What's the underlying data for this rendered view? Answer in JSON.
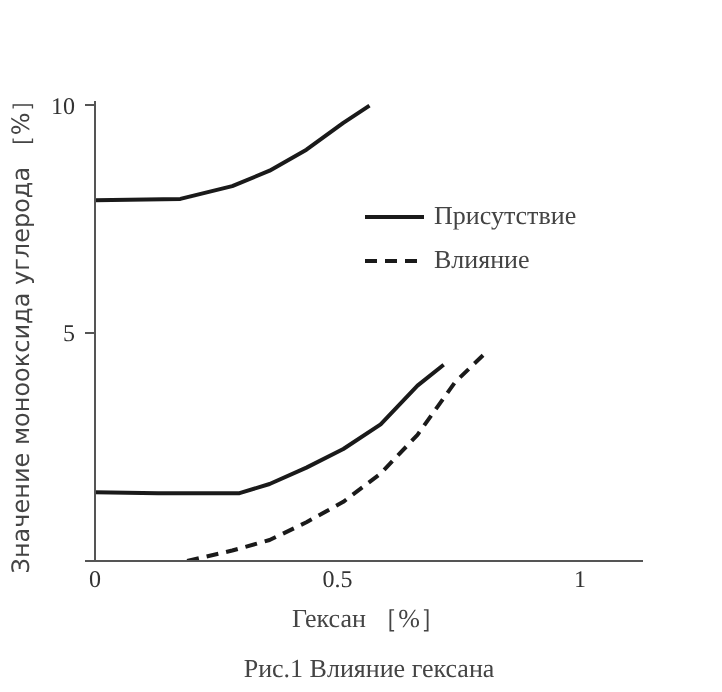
{
  "chart_data": {
    "type": "line",
    "xlabel": "Гексан ［%］",
    "ylabel": "Значение монооксида углерода ［%］",
    "annotations": [
      "Рис.1 Влияние гексана"
    ],
    "series": [
      {
        "name": "Присутствие",
        "color": "#1a1a1a",
        "line_style": "solid",
        "x": [
          0,
          0.176,
          0.283,
          0.36,
          0.436,
          0.512,
          0.566
        ],
        "values": [
          7.92,
          7.95,
          8.23,
          8.57,
          9.03,
          9.62,
          10.0
        ]
      },
      {
        "color": "#1a1a1a",
        "line_style": "solid",
        "x": [
          0,
          0.13,
          0.298,
          0.36,
          0.436,
          0.512,
          0.589,
          0.665,
          0.719
        ],
        "values": [
          1.51,
          1.49,
          1.49,
          1.69,
          2.05,
          2.46,
          3.0,
          3.85,
          4.31
        ]
      },
      {
        "name": "Влияние",
        "color": "#1a1a1a",
        "line_style": "dashed",
        "x": [
          0.19,
          0.283,
          0.36,
          0.436,
          0.512,
          0.589,
          0.665,
          0.742,
          0.81
        ],
        "values": [
          0.0,
          0.23,
          0.46,
          0.85,
          1.3,
          1.92,
          2.77,
          3.92,
          4.62
        ]
      }
    ],
    "xlim": [
      0,
      1.13
    ],
    "ylim": [
      0,
      10.1
    ],
    "xticks": [
      0,
      0.5,
      1
    ],
    "yticks": [
      {
        "value": 0,
        "label": null
      },
      5,
      10
    ],
    "grid": false,
    "legend": "top right",
    "marker": "none"
  }
}
